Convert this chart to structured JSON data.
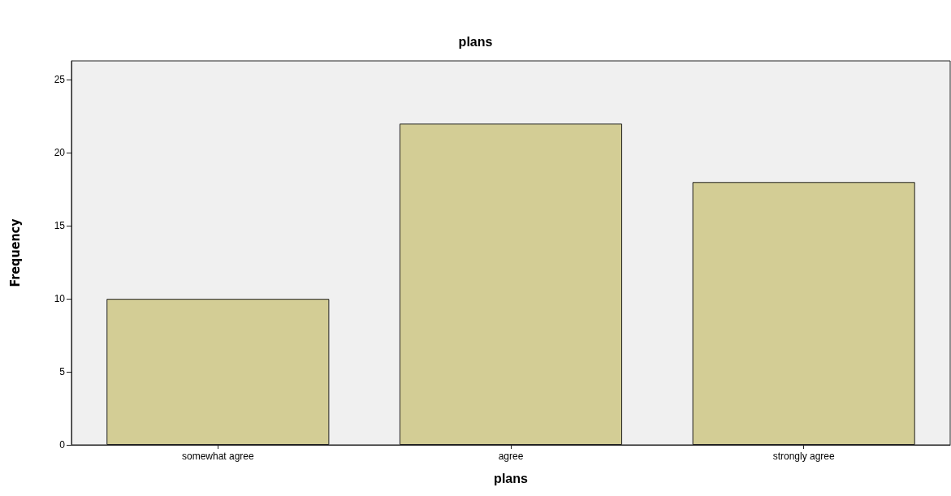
{
  "chart_data": {
    "type": "bar",
    "title": "plans",
    "xlabel": "plans",
    "ylabel": "Frequency",
    "categories": [
      "somewhat agree",
      "agree",
      "strongly agree"
    ],
    "values": [
      10,
      22,
      18
    ],
    "color": "#d3cd95",
    "ylim": [
      0,
      26.3
    ],
    "yticks": [
      0,
      5,
      10,
      15,
      20,
      25
    ],
    "grid": false
  }
}
